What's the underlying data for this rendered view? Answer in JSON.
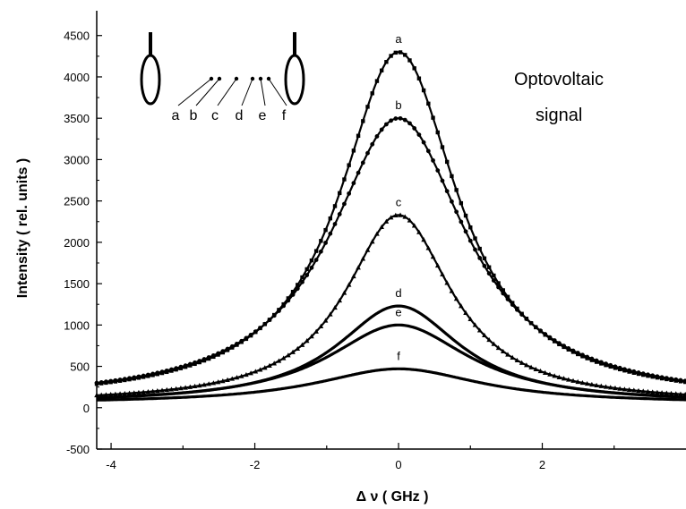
{
  "chart_data": {
    "type": "line",
    "title": "",
    "xlabel": "Δ ν ( GHz )",
    "ylabel": "Intensity ( rel. units )",
    "xlim": [
      -4.2,
      4.0
    ],
    "ylim": [
      -500,
      4800
    ],
    "x_ticks": [
      -4,
      -2,
      0,
      2
    ],
    "y_ticks": [
      -500,
      0,
      500,
      1000,
      1500,
      2000,
      2500,
      3000,
      3500,
      4000,
      4500
    ],
    "grid": false,
    "series": [
      {
        "name": "a",
        "peak": 4300,
        "hwhm": 1.0,
        "baseline": 60,
        "marker": "square"
      },
      {
        "name": "b",
        "peak": 3500,
        "hwhm": 1.15,
        "baseline": 60,
        "marker": "circle"
      },
      {
        "name": "c",
        "peak": 2330,
        "hwhm": 0.9,
        "baseline": 50,
        "marker": "triangle"
      },
      {
        "name": "d",
        "peak": 1230,
        "hwhm": 1.05,
        "baseline": 50,
        "marker": "line"
      },
      {
        "name": "e",
        "peak": 1000,
        "hwhm": 1.2,
        "baseline": 50,
        "marker": "line"
      },
      {
        "name": "f",
        "peak": 470,
        "hwhm": 1.4,
        "baseline": 50,
        "marker": "line"
      }
    ],
    "annotation": [
      "Optovoltaic",
      "signal"
    ],
    "inset_labels": [
      "a",
      "b",
      "c",
      "d",
      "e",
      "f"
    ]
  }
}
